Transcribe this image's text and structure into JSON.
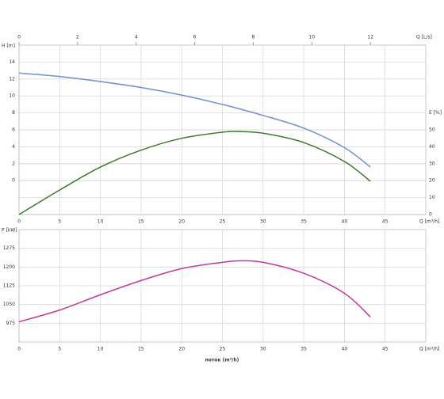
{
  "chart_data": [
    {
      "type": "line",
      "x": [
        0,
        5,
        10,
        15,
        20,
        25,
        27,
        30,
        35,
        40,
        43.2
      ],
      "xlim": [
        0,
        50
      ],
      "xticks": [
        0,
        5,
        10,
        15,
        20,
        25,
        30,
        35,
        40,
        45
      ],
      "xlabel": "Q [m³/h]",
      "x2lim": [
        0,
        13.89
      ],
      "x2ticks": [
        0,
        2,
        4,
        6,
        8,
        10,
        12
      ],
      "x2label": "Q [L/s]",
      "ylim": [
        -4,
        16
      ],
      "yticks": [
        0,
        2,
        4,
        6,
        8,
        10,
        12,
        14
      ],
      "ylabel": "H [m]",
      "y2lim": [
        0,
        100
      ],
      "y2ticks": [
        0,
        10,
        20,
        30,
        40,
        50
      ],
      "y2label": "E [%]",
      "grid": true,
      "series": [
        {
          "name": "H",
          "color": "#6f8fd6",
          "values": [
            12.7,
            12.3,
            11.7,
            11.0,
            10.1,
            9.0,
            8.5,
            7.7,
            6.2,
            3.9,
            1.6
          ]
        },
        {
          "name": "E",
          "color": "#3b7a2c",
          "axis": "y2",
          "values": [
            0,
            14.5,
            28,
            38,
            45,
            48.6,
            49,
            48,
            42.5,
            31.3,
            19.6
          ]
        }
      ]
    },
    {
      "type": "line",
      "x": [
        0,
        5,
        10,
        15,
        20,
        25,
        27,
        30,
        35,
        40,
        43.2
      ],
      "xlim": [
        0,
        50
      ],
      "xticks": [
        0,
        5,
        10,
        15,
        20,
        25,
        30,
        35,
        40,
        45
      ],
      "xlabel": "Q [m³/h]",
      "ylim": [
        900,
        1350
      ],
      "yticks": [
        975,
        1050,
        1125,
        1200,
        1275
      ],
      "ylabel": "P [kW]",
      "grid": true,
      "footer": "поток (m³/h)",
      "series": [
        {
          "name": "P",
          "color": "#c2399b",
          "values": [
            981,
            1028,
            1089,
            1146,
            1194,
            1219,
            1225,
            1219,
            1175,
            1095,
            1000
          ]
        }
      ]
    }
  ]
}
